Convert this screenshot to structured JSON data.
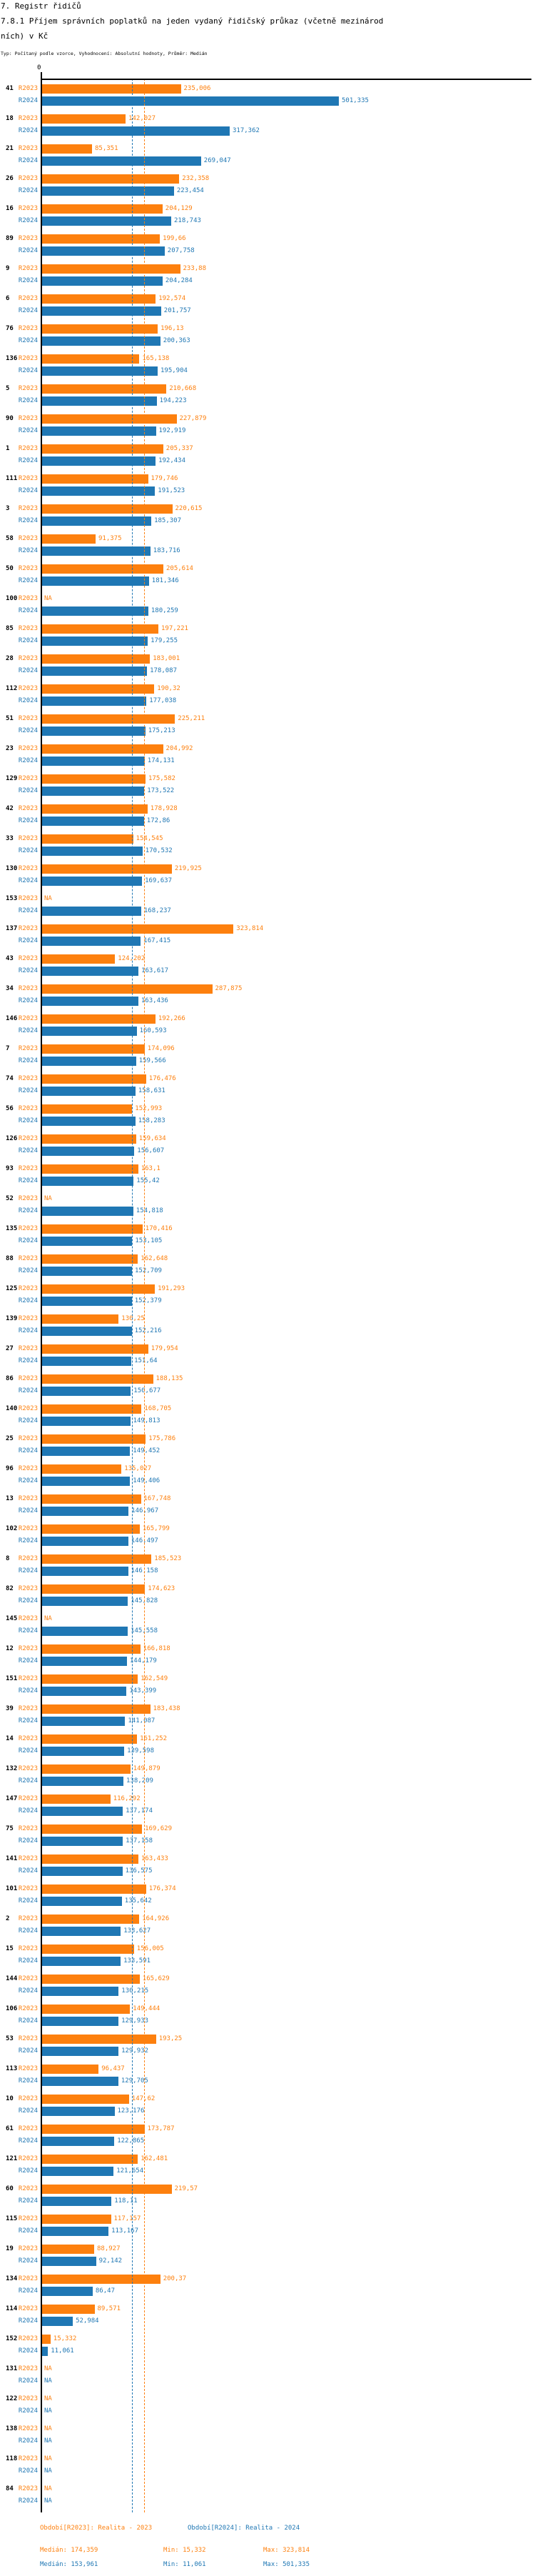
{
  "header": {
    "title_lines": {
      "0": "7. Registr řidičů",
      "1": "7.8.1 Příjem správních poplatků na jeden vydaný řidičský průkaz (včetně mezinárod",
      "2": "ních) v Kč"
    },
    "subtitle": "Typ: Počítaný podle vzorce, Vyhodnocení: Absolutní hodnoty, Průměr: Medián"
  },
  "chart_data": {
    "type": "bar",
    "orientation": "horizontal",
    "unit": "Kč",
    "x_axis": {
      "zero_label": "0",
      "min": 0
    },
    "na_label": "NA",
    "series": [
      {
        "key": "r2023",
        "label": "R2023",
        "color": "#fd800e"
      },
      {
        "key": "r2024",
        "label": "R2024",
        "color": "#1f77b4"
      }
    ],
    "medians": {
      "r2023": "174,359",
      "r2024": "153,961"
    },
    "groups": [
      {
        "id": "41",
        "r2023": "235,006",
        "r2024": "501,335"
      },
      {
        "id": "18",
        "r2023": "142,027",
        "r2024": "317,362"
      },
      {
        "id": "21",
        "r2023": "85,351",
        "r2024": "269,047"
      },
      {
        "id": "26",
        "r2023": "232,358",
        "r2024": "223,454"
      },
      {
        "id": "16",
        "r2023": "204,129",
        "r2024": "218,743"
      },
      {
        "id": "89",
        "r2023": "199,66",
        "r2024": "207,758"
      },
      {
        "id": "9",
        "r2023": "233,88",
        "r2024": "204,284"
      },
      {
        "id": "6",
        "r2023": "192,574",
        "r2024": "201,757"
      },
      {
        "id": "76",
        "r2023": "196,13",
        "r2024": "200,363"
      },
      {
        "id": "136",
        "r2023": "165,138",
        "r2024": "195,904"
      },
      {
        "id": "5",
        "r2023": "210,668",
        "r2024": "194,223"
      },
      {
        "id": "90",
        "r2023": "227,879",
        "r2024": "192,919"
      },
      {
        "id": "1",
        "r2023": "205,337",
        "r2024": "192,434"
      },
      {
        "id": "111",
        "r2023": "179,746",
        "r2024": "191,523"
      },
      {
        "id": "3",
        "r2023": "220,615",
        "r2024": "185,307"
      },
      {
        "id": "58",
        "r2023": "91,375",
        "r2024": "183,716"
      },
      {
        "id": "50",
        "r2023": "205,614",
        "r2024": "181,346"
      },
      {
        "id": "100",
        "r2023": null,
        "r2024": "180,259"
      },
      {
        "id": "85",
        "r2023": "197,221",
        "r2024": "179,255"
      },
      {
        "id": "28",
        "r2023": "183,001",
        "r2024": "178,087"
      },
      {
        "id": "112",
        "r2023": "190,32",
        "r2024": "177,038"
      },
      {
        "id": "51",
        "r2023": "225,211",
        "r2024": "175,213"
      },
      {
        "id": "23",
        "r2023": "204,992",
        "r2024": "174,131"
      },
      {
        "id": "129",
        "r2023": "175,582",
        "r2024": "173,522"
      },
      {
        "id": "42",
        "r2023": "178,928",
        "r2024": "172,86"
      },
      {
        "id": "33",
        "r2023": "154,545",
        "r2024": "170,532"
      },
      {
        "id": "130",
        "r2023": "219,925",
        "r2024": "169,637"
      },
      {
        "id": "153",
        "r2023": null,
        "r2024": "168,237"
      },
      {
        "id": "137",
        "r2023": "323,814",
        "r2024": "167,415"
      },
      {
        "id": "43",
        "r2023": "124,202",
        "r2024": "163,617"
      },
      {
        "id": "34",
        "r2023": "287,875",
        "r2024": "163,436"
      },
      {
        "id": "146",
        "r2023": "192,266",
        "r2024": "160,593"
      },
      {
        "id": "7",
        "r2023": "174,096",
        "r2024": "159,566"
      },
      {
        "id": "74",
        "r2023": "176,476",
        "r2024": "158,631"
      },
      {
        "id": "56",
        "r2023": "152,993",
        "r2024": "158,283"
      },
      {
        "id": "126",
        "r2023": "159,634",
        "r2024": "156,607"
      },
      {
        "id": "93",
        "r2023": "163,1",
        "r2024": "155,42"
      },
      {
        "id": "52",
        "r2023": null,
        "r2024": "154,818"
      },
      {
        "id": "135",
        "r2023": "170,416",
        "r2024": "153,105"
      },
      {
        "id": "88",
        "r2023": "162,648",
        "r2024": "152,709"
      },
      {
        "id": "125",
        "r2023": "191,293",
        "r2024": "152,379"
      },
      {
        "id": "139",
        "r2023": "130,25",
        "r2024": "152,216"
      },
      {
        "id": "27",
        "r2023": "179,954",
        "r2024": "151,64"
      },
      {
        "id": "86",
        "r2023": "188,135",
        "r2024": "150,677"
      },
      {
        "id": "140",
        "r2023": "168,705",
        "r2024": "149,813"
      },
      {
        "id": "25",
        "r2023": "175,786",
        "r2024": "149,452"
      },
      {
        "id": "96",
        "r2023": "135,027",
        "r2024": "149,406"
      },
      {
        "id": "13",
        "r2023": "167,748",
        "r2024": "146,967"
      },
      {
        "id": "102",
        "r2023": "165,799",
        "r2024": "146,497"
      },
      {
        "id": "8",
        "r2023": "185,523",
        "r2024": "146,158"
      },
      {
        "id": "82",
        "r2023": "174,623",
        "r2024": "145,828"
      },
      {
        "id": "145",
        "r2023": null,
        "r2024": "145,558"
      },
      {
        "id": "12",
        "r2023": "166,818",
        "r2024": "144,179"
      },
      {
        "id": "151",
        "r2023": "162,549",
        "r2024": "143,399"
      },
      {
        "id": "39",
        "r2023": "183,438",
        "r2024": "141,087"
      },
      {
        "id": "14",
        "r2023": "161,252",
        "r2024": "139,598"
      },
      {
        "id": "132",
        "r2023": "149,879",
        "r2024": "138,209"
      },
      {
        "id": "147",
        "r2023": "116,292",
        "r2024": "137,174"
      },
      {
        "id": "75",
        "r2023": "169,629",
        "r2024": "137,158"
      },
      {
        "id": "141",
        "r2023": "163,433",
        "r2024": "136,575"
      },
      {
        "id": "101",
        "r2023": "176,374",
        "r2024": "135,642"
      },
      {
        "id": "2",
        "r2023": "164,926",
        "r2024": "133,627"
      },
      {
        "id": "15",
        "r2023": "156,005",
        "r2024": "133,591"
      },
      {
        "id": "144",
        "r2023": "165,629",
        "r2024": "130,215"
      },
      {
        "id": "106",
        "r2023": "149,444",
        "r2024": "129,933"
      },
      {
        "id": "53",
        "r2023": "193,25",
        "r2024": "129,932"
      },
      {
        "id": "113",
        "r2023": "96,437",
        "r2024": "129,705"
      },
      {
        "id": "10",
        "r2023": "147,62",
        "r2024": "123,176"
      },
      {
        "id": "61",
        "r2023": "173,787",
        "r2024": "122,865"
      },
      {
        "id": "121",
        "r2023": "162,481",
        "r2024": "121,654"
      },
      {
        "id": "60",
        "r2023": "219,57",
        "r2024": "118,11"
      },
      {
        "id": "115",
        "r2023": "117,157",
        "r2024": "113,167"
      },
      {
        "id": "19",
        "r2023": "88,927",
        "r2024": "92,142"
      },
      {
        "id": "134",
        "r2023": "200,37",
        "r2024": "86,47"
      },
      {
        "id": "114",
        "r2023": "89,571",
        "r2024": "52,984"
      },
      {
        "id": "152",
        "r2023": "15,332",
        "r2024": "11,061"
      },
      {
        "id": "131",
        "r2023": null,
        "r2024": null
      },
      {
        "id": "122",
        "r2023": null,
        "r2024": null
      },
      {
        "id": "138",
        "r2023": null,
        "r2024": null
      },
      {
        "id": "118",
        "r2023": null,
        "r2024": null
      },
      {
        "id": "84",
        "r2023": null,
        "r2024": null
      }
    ]
  },
  "legend": {
    "r2023_period": "Období[R2023]: Realita - 2023",
    "r2024_period": "Období[R2024]: Realita - 2024",
    "r2023_stats": {
      "median": "Medián: 174,359",
      "min": "Min: 15,332",
      "max": "Max: 323,814"
    },
    "r2024_stats": {
      "median": "Medián: 153,961",
      "min": "Min: 11,061",
      "max": "Max: 501,335"
    }
  }
}
